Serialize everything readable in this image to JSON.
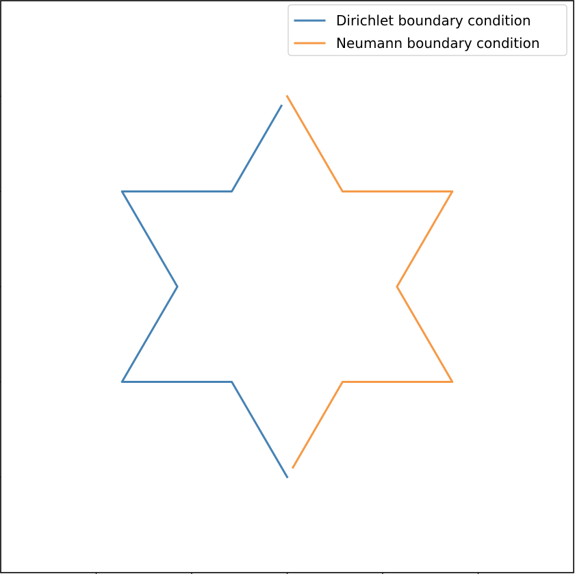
{
  "chart_data": {
    "type": "line",
    "title": "",
    "xlabel": "",
    "ylabel": "",
    "xlim": [
      -3,
      3
    ],
    "ylim": [
      -3,
      3
    ],
    "grid": false,
    "ticks_labeled": false,
    "legend_position": "upper right",
    "series": [
      {
        "name": "Dirichlet boundary condition",
        "color": "#4682b4",
        "x": [
          -0.06,
          -0.58,
          -1.73,
          -1.15,
          -1.73,
          -0.58,
          0.0
        ],
        "y": [
          1.9,
          1.0,
          1.0,
          0.0,
          -1.0,
          -1.0,
          -2.0
        ]
      },
      {
        "name": "Neumann boundary condition",
        "color": "#f59a47",
        "x": [
          0.0,
          0.58,
          1.73,
          1.15,
          1.73,
          0.58,
          0.06
        ],
        "y": [
          2.0,
          1.0,
          1.0,
          0.0,
          -1.0,
          -1.0,
          -1.9
        ]
      }
    ]
  }
}
